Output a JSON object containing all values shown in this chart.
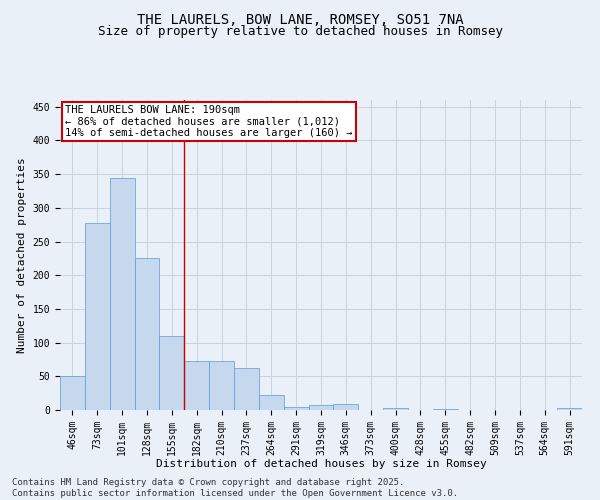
{
  "title1": "THE LAURELS, BOW LANE, ROMSEY, SO51 7NA",
  "title2": "Size of property relative to detached houses in Romsey",
  "xlabel": "Distribution of detached houses by size in Romsey",
  "ylabel": "Number of detached properties",
  "categories": [
    "46sqm",
    "73sqm",
    "101sqm",
    "128sqm",
    "155sqm",
    "182sqm",
    "210sqm",
    "237sqm",
    "264sqm",
    "291sqm",
    "319sqm",
    "346sqm",
    "373sqm",
    "400sqm",
    "428sqm",
    "455sqm",
    "482sqm",
    "509sqm",
    "537sqm",
    "564sqm",
    "591sqm"
  ],
  "values": [
    50,
    278,
    345,
    226,
    110,
    72,
    72,
    63,
    22,
    5,
    7,
    9,
    0,
    3,
    0,
    2,
    0,
    0,
    0,
    0,
    3
  ],
  "bar_color": "#c5d8ed",
  "bar_edge_color": "#5b9bd5",
  "grid_color": "#c8d4e3",
  "background_color": "#eaf0f8",
  "annotation_box_color": "#ffffff",
  "annotation_border_color": "#cc0000",
  "vline_color": "#cc0000",
  "vline_x_index": 5,
  "annotation_title": "THE LAURELS BOW LANE: 190sqm",
  "annotation_line1": "← 86% of detached houses are smaller (1,012)",
  "annotation_line2": "14% of semi-detached houses are larger (160) →",
  "ylim": [
    0,
    460
  ],
  "yticks": [
    0,
    50,
    100,
    150,
    200,
    250,
    300,
    350,
    400,
    450
  ],
  "footer1": "Contains HM Land Registry data © Crown copyright and database right 2025.",
  "footer2": "Contains public sector information licensed under the Open Government Licence v3.0.",
  "title_fontsize": 10,
  "subtitle_fontsize": 9,
  "axis_label_fontsize": 8,
  "tick_fontsize": 7,
  "footer_fontsize": 6.5,
  "annotation_fontsize": 7.5
}
